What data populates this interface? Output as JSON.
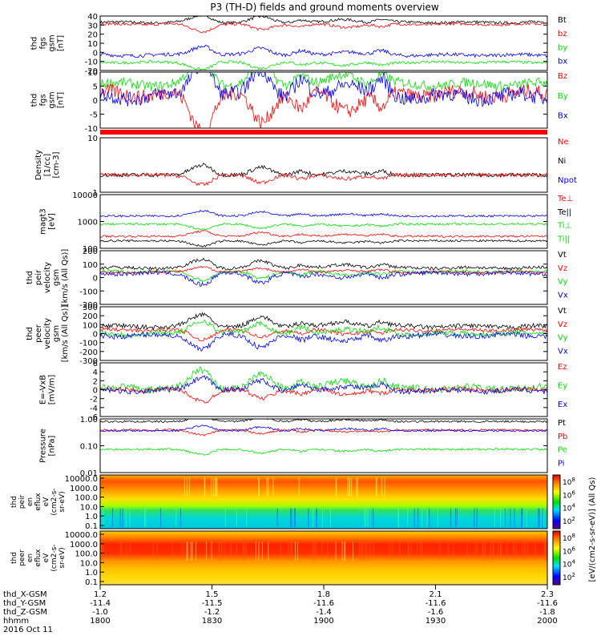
{
  "title": "P3 (TH-D) fields and ground moments overview",
  "colors": {
    "black": "#000000",
    "red": "#ff0000",
    "green": "#00e000",
    "blue": "#0000ff",
    "cyan": "#00c8c8"
  },
  "chart_data": {
    "type": "line",
    "x_range": [
      1800,
      2000
    ],
    "x_tick_labels": {
      "rows": [
        "thd_X-GSM",
        "thd_Y-GSM",
        "thd_Z-GSM",
        "hhmm"
      ],
      "columns": [
        [
          "1.2",
          "-11.4",
          "-1.0",
          "1800"
        ],
        [
          "1.5",
          "-11.5",
          "-1.2",
          "1830"
        ],
        [
          "1.8",
          "-11.6",
          "-1.4",
          "1900"
        ],
        [
          "2.1",
          "-11.6",
          "-1.6",
          "1930"
        ],
        [
          "2.3",
          "-11.6",
          "-1.8",
          "2000"
        ]
      ],
      "date": "2016 Oct 11"
    },
    "panels": [
      {
        "id": "fgs_gsm_a",
        "ylabel": [
          "thd",
          "fgs",
          "gsm",
          "[nT]"
        ],
        "ylim": [
          -20,
          40
        ],
        "yticks": [
          "40",
          "30",
          "20",
          "10",
          "0",
          "-10",
          "-20"
        ],
        "legend": [
          {
            "label": "Bt",
            "color": "black"
          },
          {
            "label": "bz",
            "color": "red"
          },
          {
            "label": "by",
            "color": "green"
          },
          {
            "label": "bx",
            "color": "blue"
          }
        ],
        "series": [
          {
            "color": "black",
            "base": 33,
            "noise": 1.5
          },
          {
            "color": "red",
            "base": 31,
            "noise": 1.5
          },
          {
            "color": "blue",
            "base": -3,
            "noise": 2
          },
          {
            "color": "green",
            "base": -11,
            "noise": 1.5
          }
        ]
      },
      {
        "id": "fgs_gsm_b",
        "ylabel": [
          "thd",
          "fgs",
          "gsm",
          "[nT]"
        ],
        "ylim": [
          -13,
          10
        ],
        "yticks": [
          "10",
          "5",
          "0",
          "-5",
          "-10"
        ],
        "legend": [
          {
            "label": "Bz",
            "color": "red"
          },
          {
            "label": "By",
            "color": "green"
          },
          {
            "label": "Bx",
            "color": "blue"
          }
        ],
        "series": [
          {
            "color": "green",
            "base": 5,
            "noise": 2
          },
          {
            "color": "red",
            "base": 1,
            "noise": 3
          },
          {
            "color": "blue",
            "base": 0,
            "noise": 3
          }
        ]
      },
      {
        "id": "density",
        "ylabel": [
          "Density",
          "[1/cc]",
          "[cm-3]"
        ],
        "ylim": [
          1,
          12
        ],
        "log": true,
        "yticks": [
          "10",
          "1"
        ],
        "legend": [
          {
            "label": "Ne",
            "color": "red"
          },
          {
            "label": "Ni",
            "color": "black"
          },
          {
            "label": "Npot",
            "color": "blue"
          }
        ],
        "series": [
          {
            "color": "black",
            "base": 2.2,
            "noise": 0.25
          },
          {
            "color": "red",
            "base": 2.2,
            "noise": 0.2
          }
        ]
      },
      {
        "id": "temp",
        "ylabel": [
          "magt3",
          "[eV]"
        ],
        "ylim": [
          100,
          10000
        ],
        "log": true,
        "yticks": [
          "10000",
          "1000",
          "100"
        ],
        "legend": [
          {
            "label": "Te⊥",
            "color": "red"
          },
          {
            "label": "Te||",
            "color": "black"
          },
          {
            "label": "Ti⊥",
            "color": "green"
          },
          {
            "label": "Ti||",
            "color": "green"
          }
        ],
        "series": [
          {
            "color": "blue",
            "base": 1600,
            "noise": 200
          },
          {
            "color": "green",
            "base": 800,
            "noise": 80
          },
          {
            "color": "red",
            "base": 280,
            "noise": 30
          },
          {
            "color": "black",
            "base": 190,
            "noise": 20
          }
        ]
      },
      {
        "id": "pei_vel",
        "ylabel": [
          "thd",
          "peir",
          "velocity",
          "gsm",
          "[km/s (All Qs)]"
        ],
        "ylim": [
          -300,
          200
        ],
        "yticks": [
          "200",
          "100",
          "0",
          "-100",
          "-200"
        ],
        "legend": [
          {
            "label": "Vt",
            "color": "black"
          },
          {
            "label": "Vz",
            "color": "red"
          },
          {
            "label": "Vy",
            "color": "green"
          },
          {
            "label": "Vx",
            "color": "blue"
          }
        ],
        "series": [
          {
            "color": "black",
            "base": 40,
            "noise": 15
          },
          {
            "color": "green",
            "base": 5,
            "noise": 15
          },
          {
            "color": "red",
            "base": 0,
            "noise": 10
          },
          {
            "color": "blue",
            "base": -10,
            "noise": 20
          }
        ]
      },
      {
        "id": "pee_vel",
        "ylabel": [
          "thd",
          "peer",
          "velocity",
          "gsm",
          "[km/s (All Qs)]"
        ],
        "ylim": [
          -300,
          300
        ],
        "yticks": [
          "300",
          "200",
          "100",
          "0",
          "-100",
          "-200",
          "-300"
        ],
        "legend": [
          {
            "label": "Vt",
            "color": "black"
          },
          {
            "label": "Vz",
            "color": "red"
          },
          {
            "label": "Vy",
            "color": "green"
          },
          {
            "label": "Vx",
            "color": "blue"
          }
        ],
        "series": [
          {
            "color": "black",
            "base": 80,
            "noise": 25
          },
          {
            "color": "red",
            "base": 40,
            "noise": 20
          },
          {
            "color": "green",
            "base": 0,
            "noise": 30
          },
          {
            "color": "blue",
            "base": -20,
            "noise": 30
          }
        ]
      },
      {
        "id": "efield",
        "ylabel": [
          "E=-VxB",
          "[mV/m]"
        ],
        "ylim": [
          -6,
          6
        ],
        "yticks": [
          "6",
          "4",
          "2",
          "0",
          "-2",
          "-4",
          "-6"
        ],
        "legend": [
          {
            "label": "Ez",
            "color": "red"
          },
          {
            "label": "Ey",
            "color": "green"
          },
          {
            "label": "Ex",
            "color": "blue"
          }
        ],
        "series": [
          {
            "color": "green",
            "base": 0.3,
            "noise": 0.8
          },
          {
            "color": "red",
            "base": 0,
            "noise": 0.5
          },
          {
            "color": "blue",
            "base": -0.2,
            "noise": 0.6
          }
        ]
      },
      {
        "id": "pressure",
        "ylabel": [
          "Pressure",
          "[nPa]"
        ],
        "ylim": [
          0.01,
          1.2
        ],
        "log": true,
        "yticks": [
          "1.00",
          "0.10",
          "0.01"
        ],
        "legend": [
          {
            "label": "Pt",
            "color": "black"
          },
          {
            "label": "Pb",
            "color": "red"
          },
          {
            "label": "Pe",
            "color": "green"
          },
          {
            "label": "Pi",
            "color": "blue"
          }
        ],
        "series": [
          {
            "color": "black",
            "base": 0.95,
            "noise": 0.03
          },
          {
            "color": "red",
            "base": 0.45,
            "noise": 0.04
          },
          {
            "color": "blue",
            "base": 0.42,
            "noise": 0.03
          },
          {
            "color": "green",
            "base": 0.08,
            "noise": 0.008
          }
        ]
      }
    ],
    "spectrograms": [
      {
        "id": "peir_eflux",
        "ylabel": [
          "thd",
          "peir",
          "en",
          "eflux",
          "eV",
          "(cm2-s-",
          "sr-eV)"
        ],
        "yticks": [
          "10000.0",
          "1000.0",
          "100.0",
          "10.0",
          "1.0",
          "0.1"
        ],
        "colorbar_label": "[eV/(cm2-s-sr-eV)] (All Qs)",
        "colorbar_ticks": [
          "10^8",
          "10^6",
          "10^4",
          "10^2"
        ]
      },
      {
        "id": "peer_eflux",
        "ylabel": [
          "thd",
          "peer",
          "en",
          "eflux",
          "eV",
          "(cm2-s-",
          "sr-eV)"
        ],
        "yticks": [
          "10000.0",
          "1000.0",
          "100.0",
          "10.0",
          "1.0",
          "0.1"
        ],
        "colorbar_label": "[eV/(cm2-s-sr-eV)] (All Qs)",
        "colorbar_ticks": [
          "10^8",
          "10^6",
          "10^4",
          "10^2"
        ]
      }
    ]
  }
}
